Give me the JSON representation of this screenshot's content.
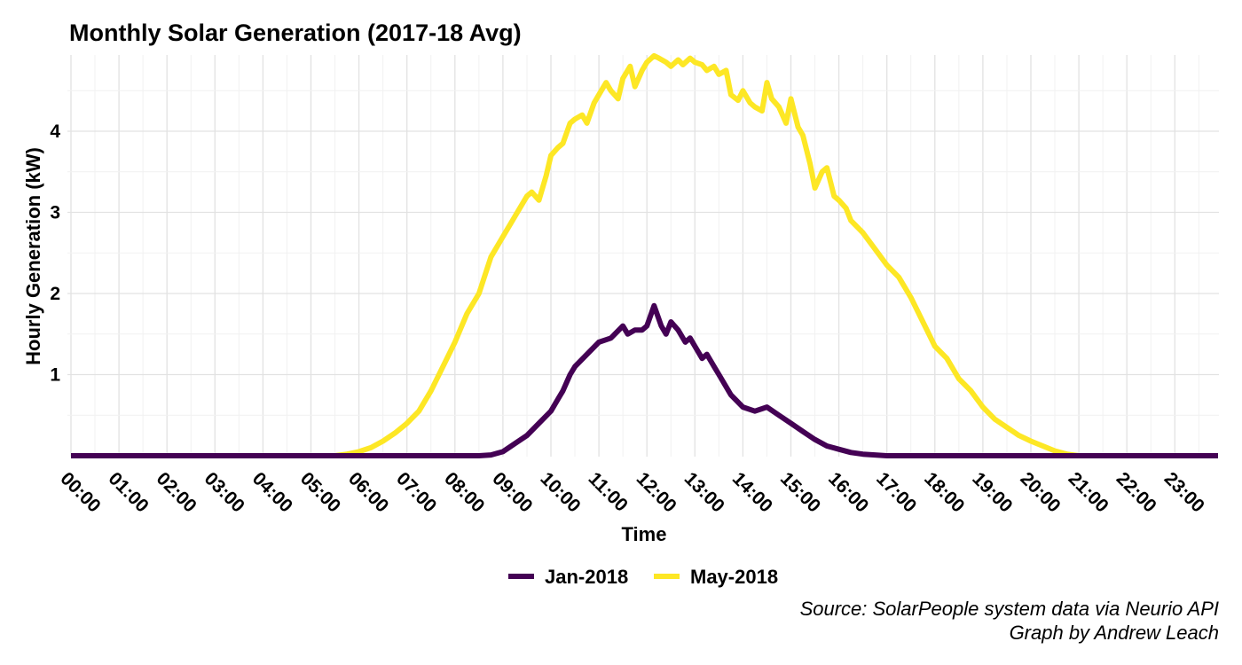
{
  "chart_data": {
    "type": "line",
    "title": "Monthly Solar Generation (2017-18 Avg)",
    "xlabel": "Time",
    "ylabel": "Hourly Generation (kW)",
    "ylim": [
      0,
      4.93
    ],
    "xlim": [
      0,
      23.9
    ],
    "grid": true,
    "legend_position": "bottom",
    "x_tick_labels": [
      "00:00",
      "01:00",
      "02:00",
      "03:00",
      "04:00",
      "05:00",
      "06:00",
      "07:00",
      "08:00",
      "09:00",
      "10:00",
      "11:00",
      "12:00",
      "13:00",
      "14:00",
      "15:00",
      "16:00",
      "17:00",
      "18:00",
      "19:00",
      "20:00",
      "21:00",
      "22:00",
      "23:00"
    ],
    "y_ticks": [
      1,
      2,
      3,
      4
    ],
    "series": [
      {
        "name": "Jan-2018",
        "color": "#440154",
        "x": [
          0,
          8.5,
          8.75,
          9.0,
          9.25,
          9.5,
          9.75,
          10.0,
          10.15,
          10.25,
          10.4,
          10.5,
          10.75,
          11.0,
          11.25,
          11.5,
          11.6,
          11.75,
          11.9,
          12.0,
          12.15,
          12.3,
          12.4,
          12.5,
          12.65,
          12.8,
          12.9,
          13.0,
          13.15,
          13.25,
          13.4,
          13.5,
          13.75,
          14.0,
          14.25,
          14.5,
          14.75,
          15.0,
          15.25,
          15.5,
          15.75,
          16.0,
          16.25,
          16.5,
          16.75,
          17.0,
          23.9
        ],
        "y": [
          0,
          0,
          0.01,
          0.05,
          0.15,
          0.25,
          0.4,
          0.55,
          0.7,
          0.8,
          1.0,
          1.1,
          1.25,
          1.4,
          1.45,
          1.6,
          1.5,
          1.55,
          1.55,
          1.6,
          1.85,
          1.6,
          1.5,
          1.65,
          1.55,
          1.4,
          1.45,
          1.35,
          1.2,
          1.25,
          1.1,
          1.0,
          0.75,
          0.6,
          0.55,
          0.6,
          0.5,
          0.4,
          0.3,
          0.2,
          0.12,
          0.08,
          0.04,
          0.02,
          0.01,
          0,
          0
        ]
      },
      {
        "name": "May-2018",
        "color": "#fde725",
        "x": [
          0,
          5.5,
          5.75,
          6.0,
          6.25,
          6.5,
          6.75,
          7.0,
          7.25,
          7.5,
          7.75,
          8.0,
          8.25,
          8.5,
          8.75,
          9.0,
          9.25,
          9.5,
          9.6,
          9.75,
          9.9,
          10.0,
          10.15,
          10.25,
          10.4,
          10.5,
          10.65,
          10.75,
          10.9,
          11.0,
          11.15,
          11.25,
          11.4,
          11.5,
          11.65,
          11.75,
          11.9,
          12.0,
          12.15,
          12.25,
          12.4,
          12.5,
          12.65,
          12.75,
          12.9,
          13.0,
          13.15,
          13.25,
          13.4,
          13.5,
          13.65,
          13.75,
          13.9,
          14.0,
          14.15,
          14.25,
          14.4,
          14.5,
          14.6,
          14.75,
          14.9,
          15.0,
          15.15,
          15.25,
          15.4,
          15.5,
          15.65,
          15.75,
          15.9,
          16.0,
          16.15,
          16.25,
          16.5,
          16.75,
          17.0,
          17.25,
          17.5,
          17.75,
          18.0,
          18.25,
          18.5,
          18.75,
          19.0,
          19.25,
          19.5,
          19.75,
          20.0,
          20.25,
          20.5,
          20.75,
          21.0,
          21.25,
          23.9
        ],
        "y": [
          0,
          0,
          0.02,
          0.05,
          0.1,
          0.18,
          0.28,
          0.4,
          0.55,
          0.8,
          1.1,
          1.4,
          1.75,
          2.0,
          2.45,
          2.7,
          2.95,
          3.2,
          3.25,
          3.15,
          3.45,
          3.7,
          3.8,
          3.85,
          4.1,
          4.15,
          4.2,
          4.1,
          4.35,
          4.45,
          4.6,
          4.5,
          4.4,
          4.65,
          4.8,
          4.55,
          4.75,
          4.85,
          4.93,
          4.9,
          4.85,
          4.8,
          4.88,
          4.82,
          4.9,
          4.85,
          4.82,
          4.75,
          4.8,
          4.7,
          4.75,
          4.45,
          4.38,
          4.5,
          4.35,
          4.3,
          4.25,
          4.6,
          4.4,
          4.3,
          4.1,
          4.4,
          4.05,
          3.95,
          3.6,
          3.3,
          3.5,
          3.55,
          3.2,
          3.15,
          3.05,
          2.9,
          2.75,
          2.55,
          2.35,
          2.2,
          1.95,
          1.65,
          1.35,
          1.2,
          0.95,
          0.8,
          0.6,
          0.45,
          0.35,
          0.25,
          0.18,
          0.12,
          0.06,
          0.02,
          0,
          0,
          0
        ]
      }
    ]
  },
  "caption": {
    "line1": "Source: SolarPeople system data via Neurio API",
    "line2": "Graph by Andrew Leach"
  }
}
